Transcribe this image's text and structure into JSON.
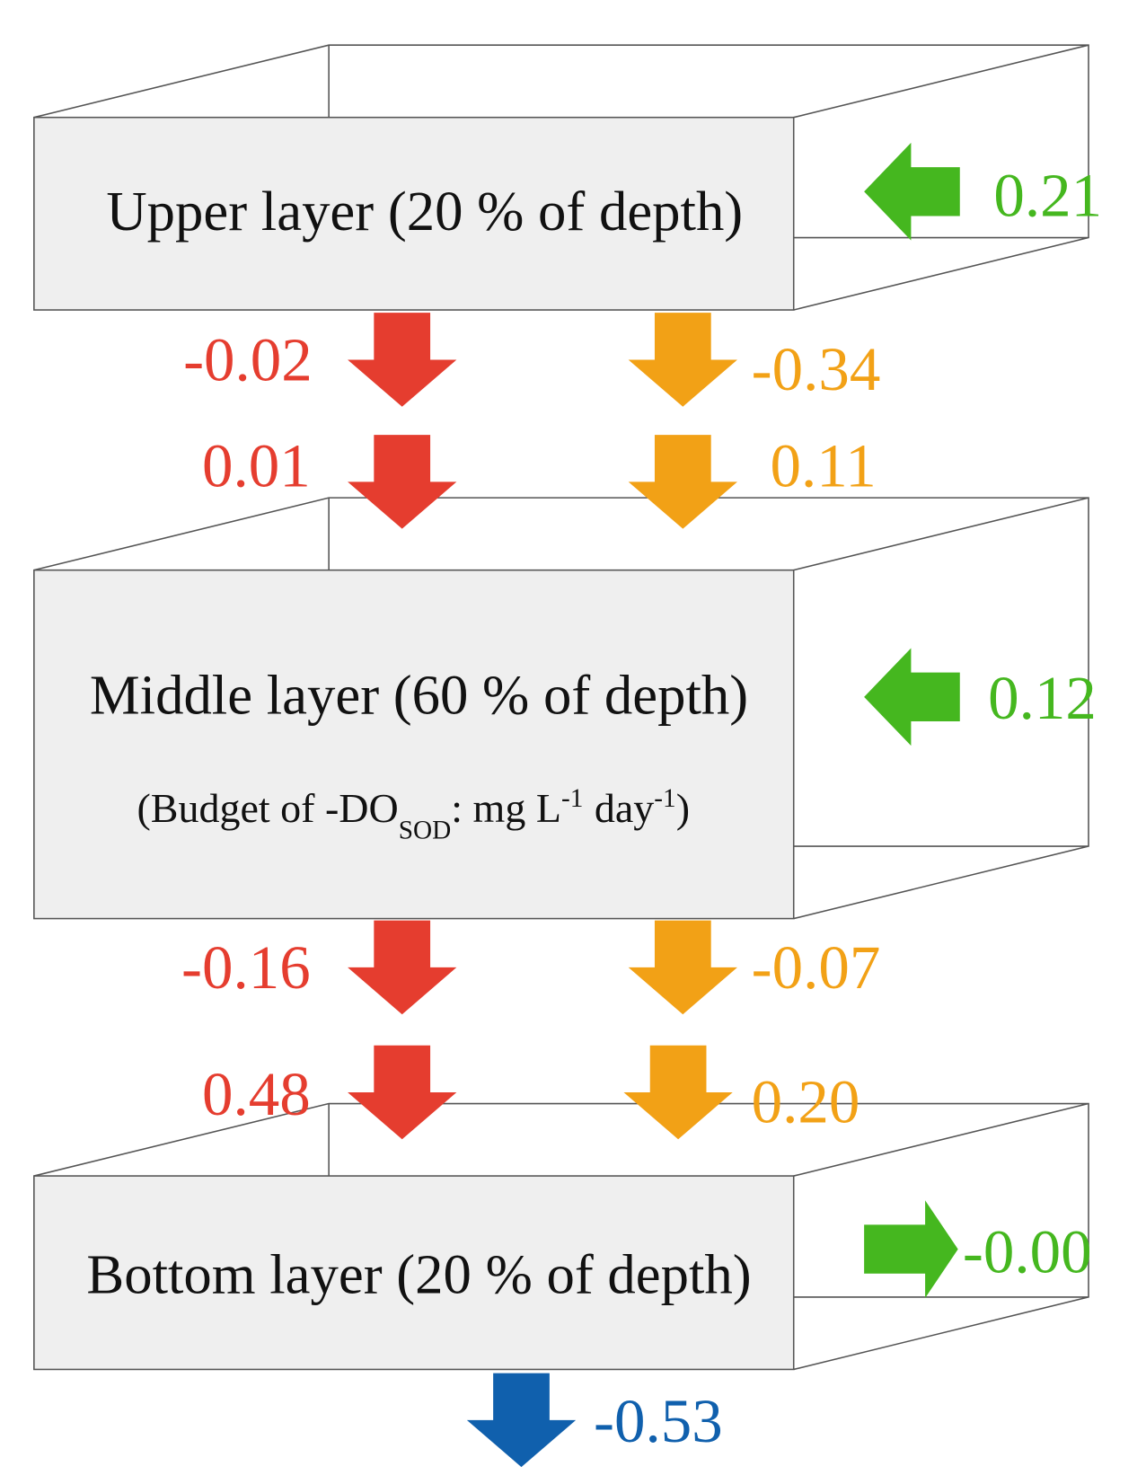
{
  "layers": [
    {
      "label": "Upper layer (20 % of depth)"
    },
    {
      "label": "Middle layer (60 % of depth)"
    },
    {
      "label": "Bottom layer (20 % of depth)"
    }
  ],
  "budget_note": {
    "open": "(Budget of -DO",
    "subscript": "SOD",
    "unit": ": mg L",
    "exponent_1": "-1",
    "unit_2": "day",
    "exponent_2": "-1",
    "close": ")"
  },
  "flows": {
    "upper_lateral": "0.21",
    "upper_out_red": "-0.02",
    "upper_out_orange": "-0.34",
    "middle_in_red": "0.01",
    "middle_in_orange": "0.11",
    "middle_lateral": "0.12",
    "middle_out_red": "-0.16",
    "middle_out_orange": "-0.07",
    "bottom_in_red": "0.48",
    "bottom_in_orange": "0.20",
    "bottom_lateral": "-0.00",
    "bottom_out": "-0.53"
  }
}
